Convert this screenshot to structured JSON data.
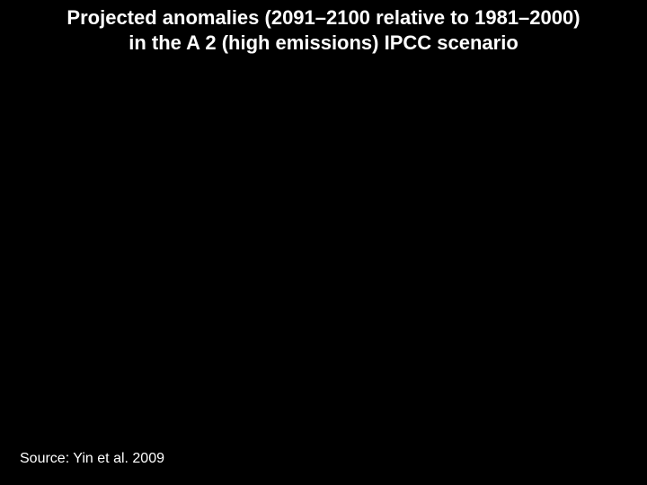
{
  "slide": {
    "background_color": "#000000",
    "text_color": "#ffffff",
    "title": {
      "line1": "Projected anomalies (2091–2100 relative to 1981–2000)",
      "line2": "in the A 2 (high emissions) IPCC scenario",
      "font_size_pt": 22,
      "font_weight": "bold",
      "align": "center"
    },
    "source": {
      "text": "Source: Yin et al. 2009",
      "font_size_pt": 16,
      "position": "bottom-left"
    }
  }
}
